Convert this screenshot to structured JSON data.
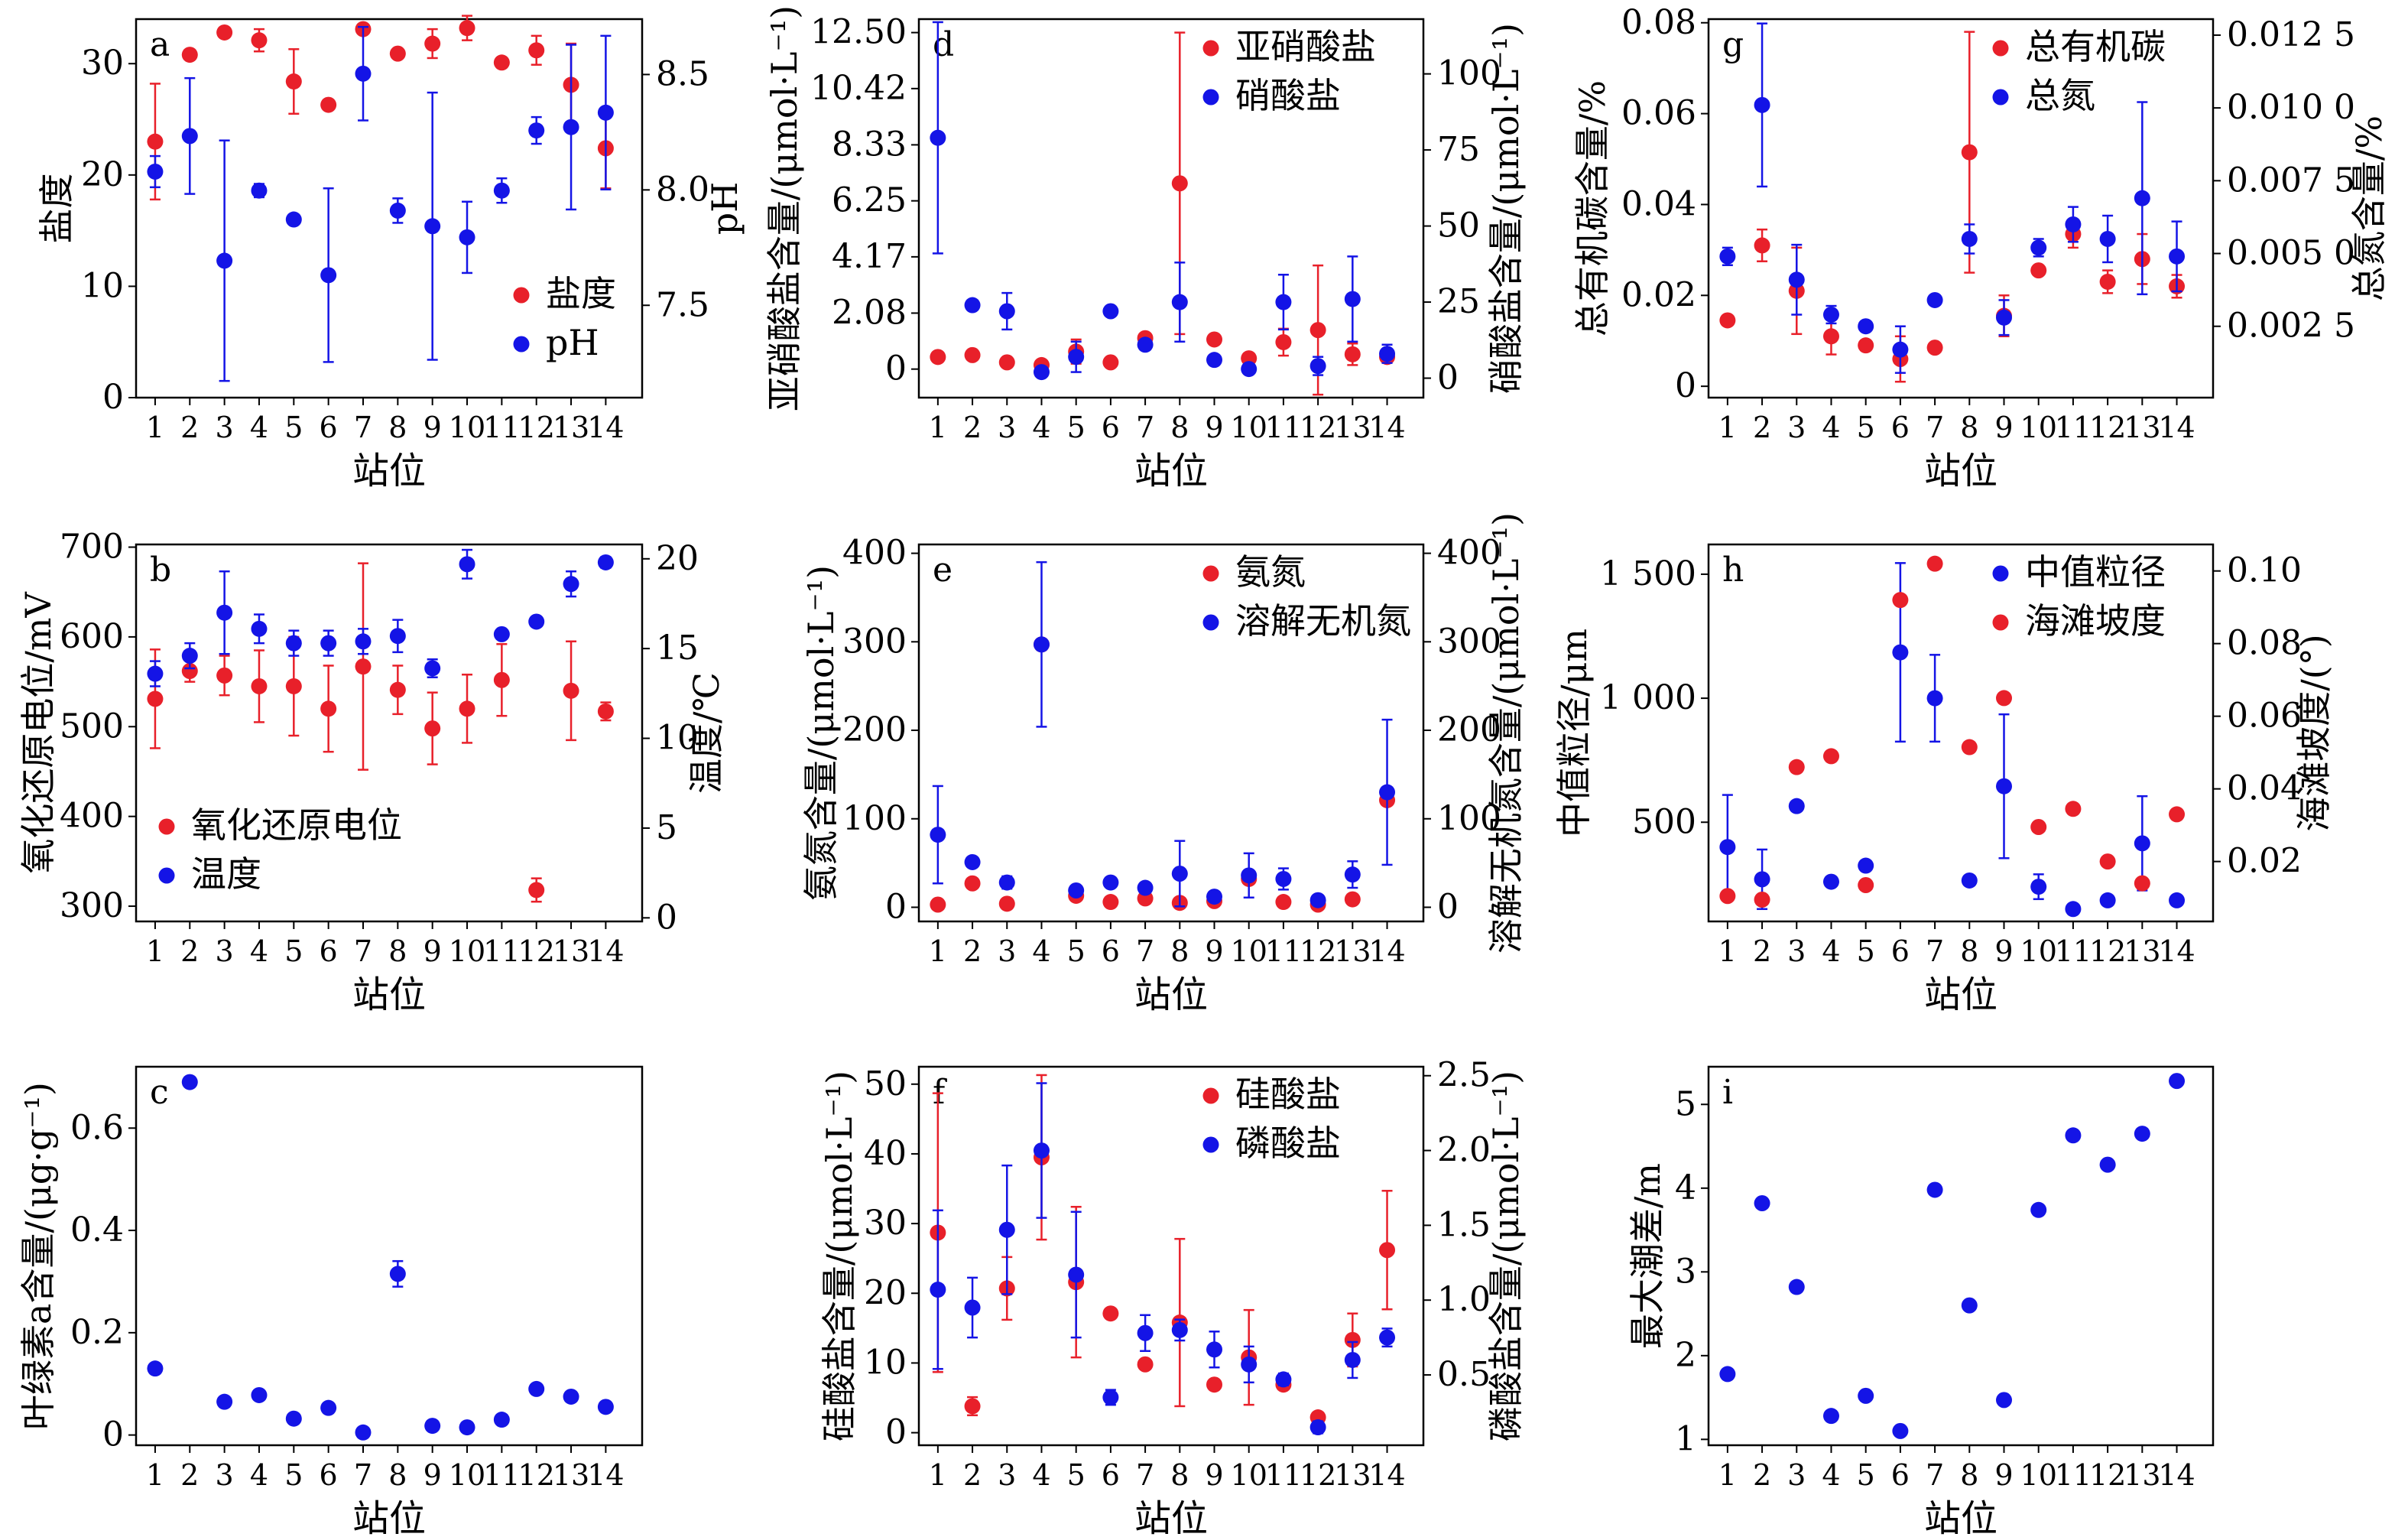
{
  "x_label": "站位",
  "stations": [
    1,
    2,
    3,
    4,
    5,
    6,
    7,
    8,
    9,
    10,
    11,
    12,
    13,
    14
  ],
  "colors": {
    "red": "#e8202a",
    "blue": "#1414e6"
  },
  "chart_data": [
    {
      "id": "a",
      "panel_label": "a",
      "type": "scatter",
      "xlabel": "站位",
      "ylabel_left": "盐度",
      "ylabel_right": "pH",
      "left_ticks": [
        {
          "v": 0,
          "t": "0"
        },
        {
          "v": 10,
          "t": "10"
        },
        {
          "v": 20,
          "t": "20"
        },
        {
          "v": 30,
          "t": "30"
        }
      ],
      "right_ticks": [
        {
          "v": 7.5,
          "t": "7.5"
        },
        {
          "v": 8.0,
          "t": "8.0"
        },
        {
          "v": 8.5,
          "t": "8.5"
        }
      ],
      "left_range": [
        0,
        34
      ],
      "right_range": [
        7.1,
        8.74
      ],
      "legend": [
        "盐度",
        "pH"
      ],
      "legend_position": "lower-right",
      "series": [
        {
          "name": "盐度",
          "color": "red",
          "axis": "left",
          "values": [
            23.0,
            30.8,
            32.8,
            32.1,
            28.4,
            26.3,
            33.1,
            30.9,
            31.8,
            33.2,
            30.1,
            31.2,
            28.1,
            22.4
          ],
          "err": [
            5.2,
            0,
            0,
            1.0,
            2.9,
            0,
            0,
            0,
            1.3,
            1.1,
            0,
            1.3,
            3.7,
            3.6
          ]
        },
        {
          "name": "pH",
          "color": "blue",
          "axis": "left",
          "values": [
            20.3,
            23.5,
            12.3,
            18.6,
            16.0,
            11.0,
            29.1,
            16.8,
            15.4,
            14.4,
            18.6,
            24.0,
            24.3,
            25.6
          ],
          "err": [
            1.4,
            5.2,
            10.8,
            0.6,
            0,
            7.8,
            4.2,
            1.1,
            12.0,
            3.2,
            1.1,
            1.2,
            7.4,
            6.9
          ]
        }
      ]
    },
    {
      "id": "b",
      "panel_label": "b",
      "type": "scatter",
      "xlabel": "站位",
      "ylabel_left": "氧化还原电位/mV",
      "ylabel_right": "温度/℃",
      "left_ticks": [
        {
          "v": 300,
          "t": "300"
        },
        {
          "v": 400,
          "t": "400"
        },
        {
          "v": 500,
          "t": "500"
        },
        {
          "v": 600,
          "t": "600"
        },
        {
          "v": 700,
          "t": "700"
        }
      ],
      "right_ticks": [
        {
          "v": 0,
          "t": "0"
        },
        {
          "v": 5,
          "t": "5"
        },
        {
          "v": 10,
          "t": "10"
        },
        {
          "v": 15,
          "t": "15"
        },
        {
          "v": 20,
          "t": "20"
        }
      ],
      "left_range": [
        283,
        703
      ],
      "right_range": [
        -0.2,
        20.8
      ],
      "legend": [
        "氧化还原电位",
        "温度"
      ],
      "legend_position": "lower-left",
      "series": [
        {
          "name": "氧化还原电位",
          "color": "red",
          "axis": "left",
          "values": [
            531,
            562,
            557,
            545,
            545,
            520,
            567,
            541,
            498,
            520,
            552,
            318,
            540,
            517
          ],
          "err": [
            55,
            12,
            22,
            40,
            55,
            48,
            115,
            27,
            40,
            38,
            40,
            13,
            55,
            10
          ]
        },
        {
          "name": "温度",
          "color": "blue",
          "axis": "right",
          "values": [
            13.6,
            14.6,
            17.0,
            16.1,
            15.3,
            15.3,
            15.4,
            15.7,
            13.9,
            19.7,
            15.8,
            16.5,
            18.6,
            19.8
          ],
          "err": [
            0.7,
            0.7,
            2.3,
            0.8,
            0.7,
            0.7,
            0.7,
            0.9,
            0.5,
            0.8,
            0,
            0,
            0.7,
            0.3
          ]
        }
      ]
    },
    {
      "id": "c",
      "panel_label": "c",
      "type": "scatter",
      "xlabel": "站位",
      "ylabel_left": "叶绿素a含量/(μg·g⁻¹)",
      "ylabel_right": "",
      "left_ticks": [
        {
          "v": 0,
          "t": "0"
        },
        {
          "v": 0.2,
          "t": "0.2"
        },
        {
          "v": 0.4,
          "t": "0.4"
        },
        {
          "v": 0.6,
          "t": "0.6"
        }
      ],
      "right_ticks": [],
      "left_range": [
        -0.02,
        0.72
      ],
      "right_range": null,
      "legend": [],
      "legend_position": "",
      "series": [
        {
          "name": "",
          "color": "blue",
          "axis": "left",
          "values": [
            0.13,
            0.69,
            0.065,
            0.078,
            0.032,
            0.053,
            0.005,
            0.315,
            0.018,
            0.015,
            0.03,
            0.09,
            0.075,
            0.055
          ],
          "err": [
            0,
            0,
            0,
            0,
            0,
            0,
            0,
            0.025,
            0,
            0,
            0,
            0,
            0,
            0
          ]
        }
      ]
    },
    {
      "id": "d",
      "panel_label": "d",
      "type": "scatter",
      "xlabel": "站位",
      "ylabel_left": "亚硝酸盐含量/(μmol·L⁻¹)",
      "ylabel_right": "硝酸盐含量/(μmol·L⁻¹)",
      "left_ticks": [
        {
          "v": 0,
          "t": "0"
        },
        {
          "v": 2.08,
          "t": "2.08"
        },
        {
          "v": 4.17,
          "t": "4.17"
        },
        {
          "v": 6.25,
          "t": "6.25"
        },
        {
          "v": 8.33,
          "t": "8.33"
        },
        {
          "v": 10.42,
          "t": "10.42"
        },
        {
          "v": 12.5,
          "t": "12.50"
        }
      ],
      "right_ticks": [
        {
          "v": 0,
          "t": "0"
        },
        {
          "v": 25,
          "t": "25"
        },
        {
          "v": 50,
          "t": "50"
        },
        {
          "v": 75,
          "t": "75"
        },
        {
          "v": 100,
          "t": "100"
        }
      ],
      "left_range": [
        -1.06,
        13.0
      ],
      "right_range": [
        -6.4,
        118
      ],
      "legend": [
        "亚硝酸盐",
        "硝酸盐"
      ],
      "legend_position": "top-right",
      "series": [
        {
          "name": "亚硝酸盐",
          "color": "red",
          "axis": "left",
          "values": [
            0.45,
            0.52,
            0.25,
            0.15,
            0.65,
            0.25,
            1.15,
            6.9,
            1.1,
            0.4,
            1.0,
            1.45,
            0.55,
            0.45
          ],
          "err": [
            0,
            0,
            0,
            0,
            0.45,
            0,
            0,
            5.6,
            0,
            0,
            0.5,
            2.4,
            0.4,
            0
          ]
        },
        {
          "name": "硝酸盐",
          "color": "blue",
          "axis": "right",
          "values": [
            79,
            24,
            22,
            2,
            7,
            22,
            11,
            25,
            6,
            3,
            25,
            4,
            26,
            8
          ],
          "err": [
            38,
            0,
            6,
            0,
            5,
            0,
            0,
            13,
            0,
            0,
            9,
            3,
            14,
            3
          ]
        }
      ]
    },
    {
      "id": "e",
      "panel_label": "e",
      "type": "scatter",
      "xlabel": "站位",
      "ylabel_left": "氨氮含量/(μmol·L⁻¹)",
      "ylabel_right": "溶解无机氮含量/(μmol·L⁻¹)",
      "left_ticks": [
        {
          "v": 0,
          "t": "0"
        },
        {
          "v": 100,
          "t": "100"
        },
        {
          "v": 200,
          "t": "200"
        },
        {
          "v": 300,
          "t": "300"
        },
        {
          "v": 400,
          "t": "400"
        }
      ],
      "right_ticks": [
        {
          "v": 0,
          "t": "0"
        },
        {
          "v": 100,
          "t": "100"
        },
        {
          "v": 200,
          "t": "200"
        },
        {
          "v": 300,
          "t": "300"
        },
        {
          "v": 400,
          "t": "400"
        }
      ],
      "left_range": [
        -16,
        410
      ],
      "right_range": [
        -16,
        410
      ],
      "legend": [
        "氨氮",
        "溶解无机氮"
      ],
      "legend_position": "top-right",
      "series": [
        {
          "name": "氨氮",
          "color": "red",
          "axis": "left",
          "values": [
            3,
            27,
            4,
            297,
            13,
            6,
            10,
            5,
            7,
            32,
            6,
            3,
            9,
            121
          ],
          "err": [
            0,
            0,
            0,
            0,
            0,
            0,
            0,
            0,
            0,
            0,
            0,
            0,
            0,
            0
          ]
        },
        {
          "name": "溶解无机氮",
          "color": "blue",
          "axis": "right",
          "values": [
            82,
            51,
            28,
            297,
            19,
            28,
            22,
            38,
            12,
            36,
            32,
            8,
            37,
            130
          ],
          "err": [
            55,
            0,
            7,
            93,
            0,
            0,
            0,
            37,
            0,
            25,
            12,
            4,
            15,
            82
          ]
        }
      ]
    },
    {
      "id": "f",
      "panel_label": "f",
      "type": "scatter",
      "xlabel": "站位",
      "ylabel_left": "硅酸盐含量/(μmol·L⁻¹)",
      "ylabel_right": "磷酸盐含量/(μmol·L⁻¹)",
      "left_ticks": [
        {
          "v": 0,
          "t": "0"
        },
        {
          "v": 10,
          "t": "10"
        },
        {
          "v": 20,
          "t": "20"
        },
        {
          "v": 30,
          "t": "30"
        },
        {
          "v": 40,
          "t": "40"
        },
        {
          "v": 50,
          "t": "50"
        }
      ],
      "right_ticks": [
        {
          "v": 0.5,
          "t": "0.5"
        },
        {
          "v": 1.0,
          "t": "1.0"
        },
        {
          "v": 1.5,
          "t": "1.5"
        },
        {
          "v": 2.0,
          "t": "2.0"
        },
        {
          "v": 2.5,
          "t": "2.5"
        }
      ],
      "left_range": [
        -1.8,
        52.5
      ],
      "right_range": [
        0.03,
        2.56
      ],
      "legend": [
        "硅酸盐",
        "磷酸盐"
      ],
      "legend_position": "top-right",
      "series": [
        {
          "name": "硅酸盐",
          "color": "red",
          "axis": "left",
          "values": [
            28.7,
            3.8,
            20.7,
            39.5,
            21.6,
            17.1,
            9.8,
            15.8,
            6.9,
            10.8,
            6.9,
            2.2,
            13.3,
            26.2
          ],
          "err": [
            20,
            1.3,
            4.5,
            11.8,
            10.8,
            0,
            0,
            12,
            0,
            6.8,
            0,
            0,
            3.8,
            8.5
          ]
        },
        {
          "name": "磷酸盐",
          "color": "blue",
          "axis": "right",
          "values": [
            1.07,
            0.95,
            1.47,
            2.0,
            1.17,
            0.35,
            0.78,
            0.8,
            0.67,
            0.57,
            0.47,
            0.15,
            0.6,
            0.75
          ],
          "err": [
            0.53,
            0.2,
            0.43,
            0.45,
            0.42,
            0.05,
            0.12,
            0.07,
            0.12,
            0.12,
            0.04,
            0.04,
            0.12,
            0.06
          ]
        }
      ]
    },
    {
      "id": "g",
      "panel_label": "g",
      "type": "scatter",
      "xlabel": "站位",
      "ylabel_left": "总有机碳含量/%",
      "ylabel_right": "总氮含量/%",
      "left_ticks": [
        {
          "v": 0,
          "t": "0"
        },
        {
          "v": 0.02,
          "t": "0.02"
        },
        {
          "v": 0.04,
          "t": "0.04"
        },
        {
          "v": 0.06,
          "t": "0.06"
        },
        {
          "v": 0.08,
          "t": "0.08"
        }
      ],
      "right_ticks": [
        {
          "v": 0.0025,
          "t": "0.002 5"
        },
        {
          "v": 0.005,
          "t": "0.005 0"
        },
        {
          "v": 0.0075,
          "t": "0.007 5"
        },
        {
          "v": 0.01,
          "t": "0.010 0"
        },
        {
          "v": 0.0125,
          "t": "0.012 5"
        }
      ],
      "left_range": [
        -0.0025,
        0.0808
      ],
      "right_range": [
        5e-05,
        0.01305
      ],
      "legend": [
        "总有机碳",
        "总氮"
      ],
      "legend_position": "top-right",
      "series": [
        {
          "name": "总有机碳",
          "color": "red",
          "axis": "left",
          "values": [
            0.0145,
            0.031,
            0.021,
            0.011,
            0.009,
            0.006,
            0.0085,
            0.0515,
            0.0155,
            0.0255,
            0.0335,
            0.023,
            0.028,
            0.022
          ],
          "err": [
            0,
            0.0035,
            0.0095,
            0.004,
            0,
            0.005,
            0,
            0.0265,
            0.0045,
            0,
            0.003,
            0.0025,
            0.0055,
            0.0025
          ]
        },
        {
          "name": "总氮",
          "color": "blue",
          "axis": "right",
          "values": [
            0.0049,
            0.0101,
            0.0041,
            0.0029,
            0.0025,
            0.0017,
            0.0034,
            0.0055,
            0.0028,
            0.0052,
            0.006,
            0.0055,
            0.0069,
            0.0049
          ],
          "err": [
            0.0003,
            0.0028,
            0.0012,
            0.0003,
            0,
            0.0008,
            0,
            0.0005,
            0.0006,
            0.0003,
            0.0006,
            0.0008,
            0.0033,
            0.0012
          ]
        }
      ]
    },
    {
      "id": "h",
      "panel_label": "h",
      "type": "scatter",
      "xlabel": "站位",
      "ylabel_left": "中值粒径/μm",
      "ylabel_right": "海滩坡度/(°)",
      "left_ticks": [
        {
          "v": 500,
          "t": "500"
        },
        {
          "v": 1000,
          "t": "1 000"
        },
        {
          "v": 1500,
          "t": "1 500"
        }
      ],
      "right_ticks": [
        {
          "v": 0.02,
          "t": "0.02"
        },
        {
          "v": 0.04,
          "t": "0.04"
        },
        {
          "v": 0.06,
          "t": "0.06"
        },
        {
          "v": 0.08,
          "t": "0.08"
        },
        {
          "v": 0.1,
          "t": "0.10"
        }
      ],
      "left_range": [
        100,
        1620
      ],
      "right_range": [
        0.0035,
        0.1073
      ],
      "legend": [
        "中值粒径",
        "海滩坡度"
      ],
      "legend_position": "top-right",
      "series": [
        {
          "name": "中值粒径",
          "color": "blue",
          "axis": "left",
          "values": [
            400,
            270,
            565,
            260,
            325,
            1185,
            1000,
            265,
            645,
            240,
            150,
            185,
            415,
            185
          ],
          "err": [
            210,
            120,
            0,
            0,
            0,
            360,
            175,
            0,
            290,
            50,
            0,
            0,
            190,
            0
          ]
        },
        {
          "name": "海滩坡度",
          "color": "red",
          "axis": "right",
          "values": [
            0.0105,
            0.0095,
            0.046,
            0.049,
            0.0135,
            0.092,
            0.102,
            0.0515,
            0.065,
            0.0295,
            0.0345,
            0.02,
            0.014,
            0.033
          ],
          "err": [
            0,
            0,
            0,
            0,
            0,
            0,
            0,
            0,
            0,
            0,
            0,
            0,
            0,
            0
          ]
        }
      ]
    },
    {
      "id": "i",
      "panel_label": "i",
      "type": "scatter",
      "xlabel": "站位",
      "ylabel_left": "最大潮差/m",
      "ylabel_right": "",
      "left_ticks": [
        {
          "v": 1,
          "t": "1"
        },
        {
          "v": 2,
          "t": "2"
        },
        {
          "v": 3,
          "t": "3"
        },
        {
          "v": 4,
          "t": "4"
        },
        {
          "v": 5,
          "t": "5"
        }
      ],
      "right_ticks": [],
      "left_range": [
        0.93,
        5.45
      ],
      "right_range": null,
      "legend": [],
      "legend_position": "",
      "series": [
        {
          "name": "",
          "color": "blue",
          "axis": "left",
          "values": [
            1.78,
            3.82,
            2.82,
            1.28,
            1.52,
            1.1,
            3.98,
            2.6,
            1.47,
            3.74,
            4.63,
            4.28,
            4.65,
            5.28
          ],
          "err": [
            0,
            0,
            0,
            0,
            0,
            0,
            0,
            0,
            0,
            0,
            0,
            0,
            0,
            0
          ]
        }
      ]
    }
  ]
}
